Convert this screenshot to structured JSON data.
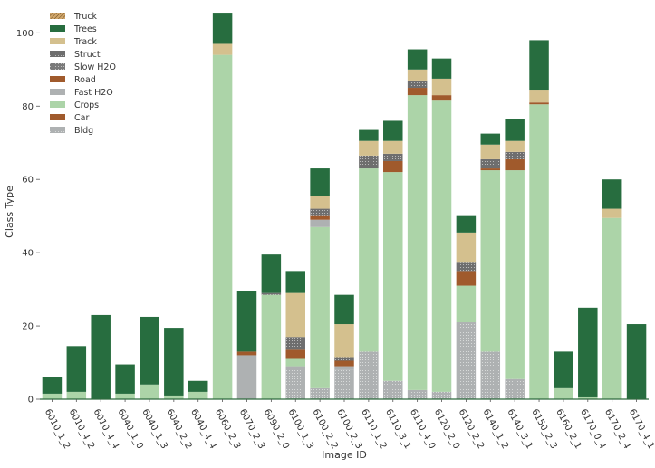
{
  "chart_data": {
    "type": "bar",
    "stacked": true,
    "xlabel": "Image ID",
    "ylabel": "Class Type",
    "ylim": [
      0,
      107
    ],
    "yticks": [
      0,
      20,
      40,
      60,
      80,
      100
    ],
    "grid": false,
    "legend_position": "top-left",
    "categories": [
      "6010_1_2",
      "6010_4_2",
      "6010_4_4",
      "6040_1_0",
      "6040_1_3",
      "6040_2_2",
      "6040_4_4",
      "6060_2_3",
      "6070_2_3",
      "6090_2_0",
      "6100_1_3",
      "6100_2_2",
      "6100_2_3",
      "6110_1_2",
      "6110_3_1",
      "6110_4_0",
      "6120_2_0",
      "6120_2_2",
      "6140_1_2",
      "6140_3_1",
      "6150_2_3",
      "6160_2_1",
      "6170_0_4",
      "6170_2_4",
      "6170_4_1"
    ],
    "series": [
      {
        "name": "Bldg",
        "color": "#aeb1b2",
        "pattern": "dots",
        "values": [
          0,
          0,
          0,
          0,
          0,
          0,
          0,
          0,
          0,
          0,
          9,
          3,
          8,
          13,
          5,
          2.5,
          2,
          21,
          13,
          5.5,
          0,
          0,
          0,
          0,
          0
        ]
      },
      {
        "name": "Car",
        "color": "#a05a2c",
        "pattern": "none",
        "values": [
          0,
          0,
          0,
          0,
          0,
          0,
          0,
          0,
          0,
          0,
          0,
          0,
          0,
          0,
          0,
          0,
          0,
          0,
          0,
          0,
          0,
          0,
          0,
          0,
          0
        ]
      },
      {
        "name": "Crops",
        "color": "#acd4a8",
        "pattern": "none",
        "values": [
          1.5,
          2,
          0,
          1.5,
          4,
          1,
          2,
          94,
          0,
          28.5,
          2,
          44,
          0,
          50,
          57,
          80.5,
          79.5,
          10,
          49.5,
          57,
          80.5,
          3,
          0.5,
          49.5,
          0
        ]
      },
      {
        "name": "Fast H2O",
        "color": "#aeb1b2",
        "pattern": "none",
        "values": [
          0,
          0,
          0,
          0,
          0,
          0,
          0,
          0,
          12,
          0,
          0,
          2,
          1,
          0,
          0,
          0,
          0,
          0,
          0,
          0,
          0,
          0,
          0,
          0,
          0
        ]
      },
      {
        "name": "Road",
        "color": "#a05a2c",
        "pattern": "none",
        "values": [
          0,
          0,
          0,
          0,
          0,
          0,
          0,
          0,
          1,
          0,
          2.5,
          1,
          1.5,
          0,
          3,
          2,
          1.5,
          4,
          0.5,
          3,
          0.5,
          0,
          0,
          0,
          0
        ]
      },
      {
        "name": "Slow H2O",
        "color": "#7a7a7a",
        "pattern": "dots",
        "values": [
          0,
          0,
          0,
          0,
          0,
          0,
          0,
          0,
          0,
          0,
          0,
          0,
          0,
          0,
          0,
          0,
          0,
          0,
          0,
          0,
          0,
          0,
          0,
          0,
          0
        ]
      },
      {
        "name": "Struct",
        "color": "#6e6e6e",
        "pattern": "dots",
        "values": [
          0,
          0,
          0,
          0,
          0,
          0,
          0,
          0,
          0,
          0.5,
          3.5,
          2,
          1,
          3.5,
          2,
          2,
          0,
          2.5,
          2.5,
          2,
          0,
          0,
          0,
          0,
          0
        ]
      },
      {
        "name": "Track",
        "color": "#d4c08e",
        "pattern": "none",
        "values": [
          0,
          0,
          0,
          0,
          0,
          0,
          0,
          3,
          0,
          0,
          12,
          3.5,
          9,
          4,
          3.5,
          3,
          4.5,
          8,
          4,
          3,
          3.5,
          0,
          0,
          2.5,
          0
        ]
      },
      {
        "name": "Trees",
        "color": "#276d3f",
        "pattern": "none",
        "values": [
          4.5,
          12.5,
          23,
          8,
          18.5,
          18.5,
          3,
          8.5,
          16.5,
          10.5,
          6,
          7.5,
          8,
          3,
          5.5,
          5.5,
          5.5,
          4.5,
          3,
          6,
          13.5,
          10,
          24.5,
          8,
          20.5
        ]
      },
      {
        "name": "Truck",
        "color": "#cfa56a",
        "pattern": "hatch",
        "values": [
          0,
          0,
          0,
          0,
          0,
          0,
          0,
          0,
          0,
          0,
          0,
          0,
          0,
          0,
          0,
          0,
          0,
          0,
          0,
          0,
          0,
          0,
          0,
          0,
          0
        ]
      }
    ],
    "legend_order": [
      "Truck",
      "Trees",
      "Track",
      "Struct",
      "Slow H2O",
      "Road",
      "Fast H2O",
      "Crops",
      "Car",
      "Bldg"
    ]
  }
}
